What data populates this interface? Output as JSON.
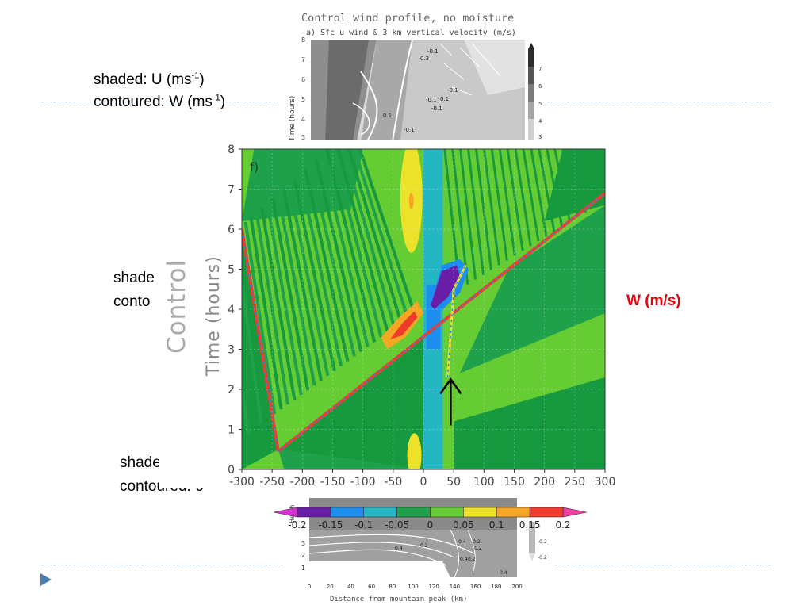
{
  "slide": {
    "label_u_shaded": "shaded: U (ms",
    "label_u_sup": "-1",
    "label_u_close": ")",
    "label_w_contoured": "contoured: W (ms",
    "label_w_sup": "-1",
    "label_w_close": ")",
    "partial_shaded": "shade",
    "partial_contoured": "conto",
    "label_w_shaded": "shaded: w (m",
    "label_contoured_6": "contoured: 6",
    "w_units": "W (m/s)",
    "w_units_color": "#e8000b",
    "nav_arrow_color": "#4d7fb3"
  },
  "top_figure": {
    "title": "Control wind profile, no moisture",
    "subtitle": "a) Sfc u wind & 3 km vertical velocity (m/s)",
    "ylabel": "Time (hours)",
    "yticks": [
      "8",
      "7",
      "6",
      "5",
      "4",
      "3"
    ],
    "contour_labels": [
      "0.3",
      "-0.1",
      "0.1",
      "-0.1",
      "-0.1",
      "0.1",
      "-0.1",
      "-0.1",
      "-0.1",
      "0.1"
    ],
    "colorbar_ticks": [
      "7",
      "6",
      "5",
      "4",
      "3"
    ]
  },
  "bottom_figure": {
    "ylabel": "Heigh",
    "yticks": [
      "3",
      "2",
      "1"
    ],
    "xticks": [
      "0",
      "20",
      "40",
      "60",
      "80",
      "100",
      "120",
      "140",
      "160",
      "180",
      "200"
    ],
    "xlabel": "Distance from mountain peak (km)",
    "contour_labels": [
      "0.4",
      "0.2",
      "-0.4",
      "-0.2",
      "-0.2",
      "0.4",
      "0.2",
      "0.4"
    ],
    "colorbar_ticks": [
      "-0.2",
      "-0.2"
    ]
  },
  "chart_data": {
    "type": "heatmap",
    "panel_label": "f)",
    "row_label": "Control",
    "ylabel": "Time (hours)",
    "xlim": [
      -300,
      300
    ],
    "ylim": [
      0,
      8
    ],
    "xticks": [
      -300,
      -250,
      -200,
      -150,
      -100,
      -50,
      0,
      50,
      100,
      150,
      200,
      250,
      300
    ],
    "yticks": [
      0,
      1,
      2,
      3,
      4,
      5,
      6,
      7,
      8
    ],
    "colorbar": {
      "label": "W (m/s)",
      "levels": [
        -0.2,
        -0.15,
        -0.1,
        -0.05,
        0,
        0.05,
        0.1,
        0.15,
        0.2
      ],
      "colors": [
        "#d62fd2",
        "#6a1ea8",
        "#1c8ef0",
        "#25b6c4",
        "#1fa04a",
        "#66cc33",
        "#ece22a",
        "#f5a623",
        "#ef3b2c",
        "#ee3fa0"
      ]
    },
    "features": [
      {
        "type": "line",
        "name": "leftward front",
        "points": [
          [
            -240,
            0.45
          ],
          [
            -300,
            6.0
          ]
        ]
      },
      {
        "type": "line",
        "name": "rightward front",
        "points": [
          [
            -240,
            0.45
          ],
          [
            300,
            6.9
          ]
        ]
      },
      {
        "type": "line",
        "name": "mountain wave",
        "points": [
          [
            40,
            2.3
          ],
          [
            50,
            4.5
          ],
          [
            70,
            5.1
          ]
        ]
      }
    ],
    "annotation": {
      "type": "arrow",
      "x": 45,
      "y_from": 1.1,
      "y_to": 2.25
    }
  }
}
